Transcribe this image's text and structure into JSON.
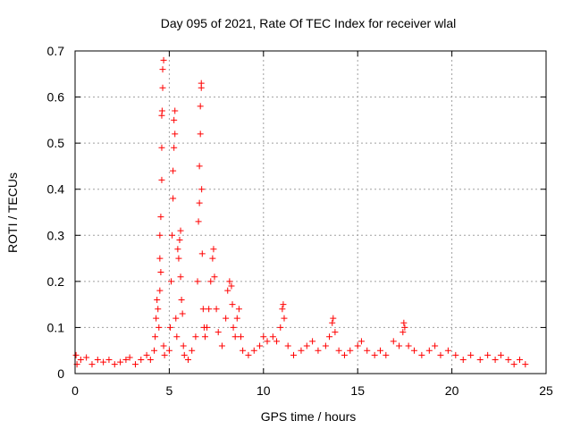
{
  "chart_data": {
    "type": "scatter",
    "title": "Day 095 of 2021, Rate Of TEC Index for receiver wlal",
    "xlabel": "GPS time / hours",
    "ylabel": "ROTI / TECUs",
    "xlim": [
      0,
      25
    ],
    "ylim": [
      0,
      0.7
    ],
    "xticks": [
      0,
      5,
      10,
      15,
      20,
      25
    ],
    "yticks": [
      0,
      0.1,
      0.2,
      0.3,
      0.4,
      0.5,
      0.6,
      0.7
    ],
    "grid": true,
    "marker": "+",
    "color": "#ff0000",
    "series": [
      {
        "name": "ROTI",
        "points": [
          [
            0.05,
            0.04
          ],
          [
            0.1,
            0.02
          ],
          [
            0.3,
            0.03
          ],
          [
            0.6,
            0.035
          ],
          [
            0.9,
            0.02
          ],
          [
            1.2,
            0.03
          ],
          [
            1.5,
            0.025
          ],
          [
            1.8,
            0.03
          ],
          [
            2.1,
            0.02
          ],
          [
            2.4,
            0.025
          ],
          [
            2.7,
            0.03
          ],
          [
            2.9,
            0.035
          ],
          [
            3.2,
            0.02
          ],
          [
            3.5,
            0.03
          ],
          [
            3.8,
            0.04
          ],
          [
            4.0,
            0.03
          ],
          [
            4.2,
            0.05
          ],
          [
            4.25,
            0.08
          ],
          [
            4.3,
            0.12
          ],
          [
            4.35,
            0.16
          ],
          [
            4.4,
            0.14
          ],
          [
            4.45,
            0.1
          ],
          [
            4.5,
            0.18
          ],
          [
            4.5,
            0.25
          ],
          [
            4.55,
            0.22
          ],
          [
            4.5,
            0.3
          ],
          [
            4.55,
            0.34
          ],
          [
            4.6,
            0.42
          ],
          [
            4.6,
            0.49
          ],
          [
            4.6,
            0.56
          ],
          [
            4.62,
            0.57
          ],
          [
            4.65,
            0.62
          ],
          [
            4.65,
            0.66
          ],
          [
            4.7,
            0.68
          ],
          [
            4.7,
            0.06
          ],
          [
            4.75,
            0.04
          ],
          [
            5.0,
            0.05
          ],
          [
            5.05,
            0.1
          ],
          [
            5.1,
            0.2
          ],
          [
            5.15,
            0.3
          ],
          [
            5.2,
            0.38
          ],
          [
            5.2,
            0.44
          ],
          [
            5.25,
            0.49
          ],
          [
            5.25,
            0.55
          ],
          [
            5.3,
            0.57
          ],
          [
            5.3,
            0.52
          ],
          [
            5.35,
            0.12
          ],
          [
            5.4,
            0.08
          ],
          [
            5.45,
            0.27
          ],
          [
            5.5,
            0.25
          ],
          [
            5.55,
            0.29
          ],
          [
            5.6,
            0.31
          ],
          [
            5.6,
            0.21
          ],
          [
            5.65,
            0.16
          ],
          [
            5.7,
            0.13
          ],
          [
            5.75,
            0.06
          ],
          [
            5.8,
            0.04
          ],
          [
            6.0,
            0.03
          ],
          [
            6.2,
            0.05
          ],
          [
            6.4,
            0.08
          ],
          [
            6.5,
            0.2
          ],
          [
            6.55,
            0.33
          ],
          [
            6.6,
            0.37
          ],
          [
            6.6,
            0.45
          ],
          [
            6.65,
            0.52
          ],
          [
            6.65,
            0.58
          ],
          [
            6.7,
            0.62
          ],
          [
            6.7,
            0.63
          ],
          [
            6.72,
            0.4
          ],
          [
            6.75,
            0.26
          ],
          [
            6.8,
            0.14
          ],
          [
            6.85,
            0.1
          ],
          [
            6.9,
            0.08
          ],
          [
            7.0,
            0.1
          ],
          [
            7.1,
            0.14
          ],
          [
            7.2,
            0.2
          ],
          [
            7.3,
            0.25
          ],
          [
            7.35,
            0.27
          ],
          [
            7.4,
            0.21
          ],
          [
            7.5,
            0.14
          ],
          [
            7.6,
            0.09
          ],
          [
            7.8,
            0.06
          ],
          [
            8.0,
            0.12
          ],
          [
            8.1,
            0.18
          ],
          [
            8.2,
            0.2
          ],
          [
            8.3,
            0.19
          ],
          [
            8.35,
            0.15
          ],
          [
            8.4,
            0.1
          ],
          [
            8.5,
            0.08
          ],
          [
            8.6,
            0.12
          ],
          [
            8.7,
            0.14
          ],
          [
            8.8,
            0.08
          ],
          [
            8.9,
            0.05
          ],
          [
            9.2,
            0.04
          ],
          [
            9.5,
            0.05
          ],
          [
            9.8,
            0.06
          ],
          [
            10.0,
            0.08
          ],
          [
            10.2,
            0.07
          ],
          [
            10.5,
            0.08
          ],
          [
            10.7,
            0.07
          ],
          [
            10.9,
            0.1
          ],
          [
            11.0,
            0.14
          ],
          [
            11.05,
            0.15
          ],
          [
            11.1,
            0.12
          ],
          [
            11.3,
            0.06
          ],
          [
            11.6,
            0.04
          ],
          [
            12.0,
            0.05
          ],
          [
            12.3,
            0.06
          ],
          [
            12.6,
            0.07
          ],
          [
            12.9,
            0.05
          ],
          [
            13.3,
            0.06
          ],
          [
            13.5,
            0.08
          ],
          [
            13.65,
            0.11
          ],
          [
            13.7,
            0.12
          ],
          [
            13.8,
            0.09
          ],
          [
            14.0,
            0.05
          ],
          [
            14.3,
            0.04
          ],
          [
            14.6,
            0.05
          ],
          [
            15.0,
            0.06
          ],
          [
            15.2,
            0.07
          ],
          [
            15.5,
            0.05
          ],
          [
            15.9,
            0.04
          ],
          [
            16.2,
            0.05
          ],
          [
            16.5,
            0.04
          ],
          [
            16.9,
            0.07
          ],
          [
            17.2,
            0.06
          ],
          [
            17.4,
            0.09
          ],
          [
            17.45,
            0.11
          ],
          [
            17.5,
            0.1
          ],
          [
            17.7,
            0.06
          ],
          [
            18.0,
            0.05
          ],
          [
            18.4,
            0.04
          ],
          [
            18.8,
            0.05
          ],
          [
            19.1,
            0.06
          ],
          [
            19.4,
            0.04
          ],
          [
            19.8,
            0.05
          ],
          [
            20.2,
            0.04
          ],
          [
            20.6,
            0.03
          ],
          [
            21.0,
            0.04
          ],
          [
            21.5,
            0.03
          ],
          [
            21.9,
            0.04
          ],
          [
            22.3,
            0.03
          ],
          [
            22.6,
            0.04
          ],
          [
            23.0,
            0.03
          ],
          [
            23.3,
            0.02
          ],
          [
            23.6,
            0.03
          ],
          [
            23.9,
            0.02
          ]
        ]
      }
    ]
  }
}
